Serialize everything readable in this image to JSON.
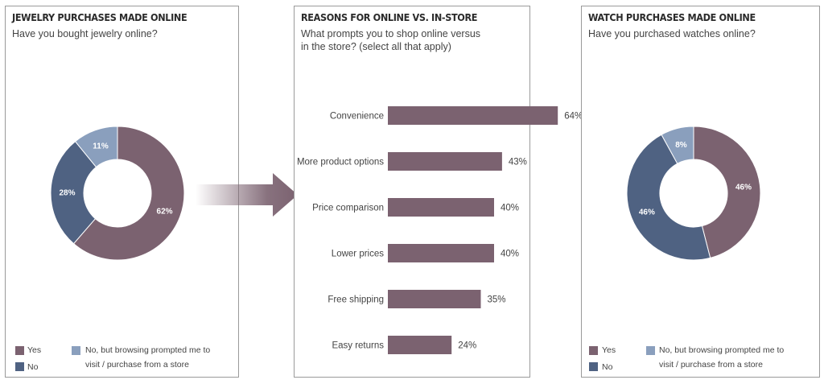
{
  "colors": {
    "yes": "#7b6270",
    "no": "#4f6282",
    "browse": "#8a9fbd",
    "bar": "#7b6270"
  },
  "panel1": {
    "title": "JEWELRY PURCHASES MADE ONLINE",
    "subtitle": "Have you bought jewelry online?",
    "legend": {
      "yes": "Yes",
      "no": "No",
      "browse_line1": "No, but browsing prompted me to",
      "browse_line2": "visit / purchase from a store"
    }
  },
  "panel2": {
    "title": "REASONS FOR ONLINE VS. IN-STORE",
    "subtitle_line1": "What prompts you to shop online versus",
    "subtitle_line2": "in the store? (select all that apply)"
  },
  "panel3": {
    "title": "WATCH PURCHASES MADE ONLINE",
    "subtitle": "Have you purchased watches online?",
    "legend": {
      "yes": "Yes",
      "no": "No",
      "browse_line1": "No, but browsing prompted me to",
      "browse_line2": "visit / purchase from a store"
    }
  },
  "chart_data": [
    {
      "type": "pie",
      "title": "JEWELRY PURCHASES MADE ONLINE",
      "categories": [
        "Yes",
        "No",
        "No, but browsing prompted me to visit / purchase from a store"
      ],
      "values": [
        62,
        28,
        11
      ],
      "labels": [
        "62%",
        "28%",
        "11%"
      ],
      "legend": "bottom-left"
    },
    {
      "type": "bar",
      "title": "REASONS FOR ONLINE VS. IN-STORE",
      "categories": [
        "Convenience",
        "More product options",
        "Price comparison",
        "Lower prices",
        "Free shipping",
        "Easy returns"
      ],
      "values": [
        64,
        43,
        40,
        40,
        35,
        24
      ],
      "labels": [
        "64%",
        "43%",
        "40%",
        "40%",
        "35%",
        "24%"
      ],
      "orientation": "horizontal",
      "grid": false
    },
    {
      "type": "pie",
      "title": "WATCH PURCHASES MADE ONLINE",
      "categories": [
        "Yes",
        "No",
        "No, but browsing prompted me to visit / purchase from a store"
      ],
      "values": [
        46,
        46,
        8
      ],
      "labels": [
        "46%",
        "46%",
        "8%"
      ],
      "legend": "bottom-left"
    }
  ]
}
